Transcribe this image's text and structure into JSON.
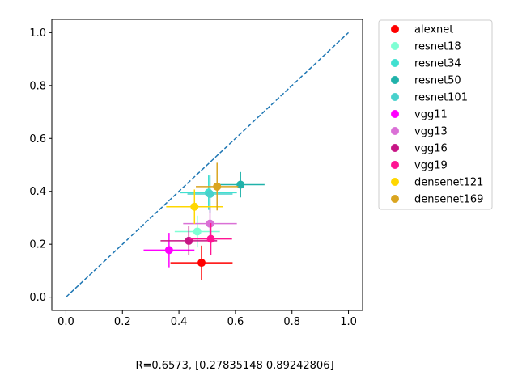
{
  "chart_data": {
    "type": "scatter",
    "title": "",
    "xlabel": "",
    "ylabel": "",
    "xlim": [
      -0.05,
      1.05
    ],
    "ylim": [
      -0.05,
      1.05
    ],
    "x_ticks": [
      "0.0",
      "0.2",
      "0.4",
      "0.6",
      "0.8",
      "1.0"
    ],
    "y_ticks": [
      "0.0",
      "0.2",
      "0.4",
      "0.6",
      "0.8",
      "1.0"
    ],
    "grid": false,
    "legend_position": "outside-right",
    "caption": "R=0.6573, [0.27835148 0.89242806]",
    "reference_line": {
      "style": "dashed",
      "color": "#1f77b4",
      "from": [
        0,
        0
      ],
      "to": [
        1,
        1
      ]
    },
    "series": [
      {
        "name": "alexnet",
        "color": "#ff0000",
        "x": 0.48,
        "y": 0.13,
        "xerr": 0.11,
        "yerr": 0.065
      },
      {
        "name": "resnet18",
        "color": "#7fffd4",
        "x": 0.465,
        "y": 0.248,
        "xerr": 0.08,
        "yerr": 0.06
      },
      {
        "name": "resnet34",
        "color": "#40e0d0",
        "x": 0.505,
        "y": 0.395,
        "xerr": 0.1,
        "yerr": 0.065
      },
      {
        "name": "resnet50",
        "color": "#20b2aa",
        "x": 0.618,
        "y": 0.425,
        "xerr": 0.085,
        "yerr": 0.048
      },
      {
        "name": "resnet101",
        "color": "#48d1cc",
        "x": 0.51,
        "y": 0.39,
        "xerr": 0.08,
        "yerr": 0.07
      },
      {
        "name": "vgg11",
        "color": "#ff00ff",
        "x": 0.365,
        "y": 0.178,
        "xerr": 0.09,
        "yerr": 0.065
      },
      {
        "name": "vgg13",
        "color": "#da70d6",
        "x": 0.51,
        "y": 0.278,
        "xerr": 0.095,
        "yerr": 0.065
      },
      {
        "name": "vgg16",
        "color": "#c71585",
        "x": 0.435,
        "y": 0.213,
        "xerr": 0.1,
        "yerr": 0.055
      },
      {
        "name": "vgg19",
        "color": "#ff1493",
        "x": 0.513,
        "y": 0.22,
        "xerr": 0.075,
        "yerr": 0.06
      },
      {
        "name": "densenet121",
        "color": "#ffd700",
        "x": 0.455,
        "y": 0.342,
        "xerr": 0.1,
        "yerr": 0.065
      },
      {
        "name": "densenet169",
        "color": "#daa520",
        "x": 0.535,
        "y": 0.418,
        "xerr": 0.075,
        "yerr": 0.09
      }
    ]
  }
}
